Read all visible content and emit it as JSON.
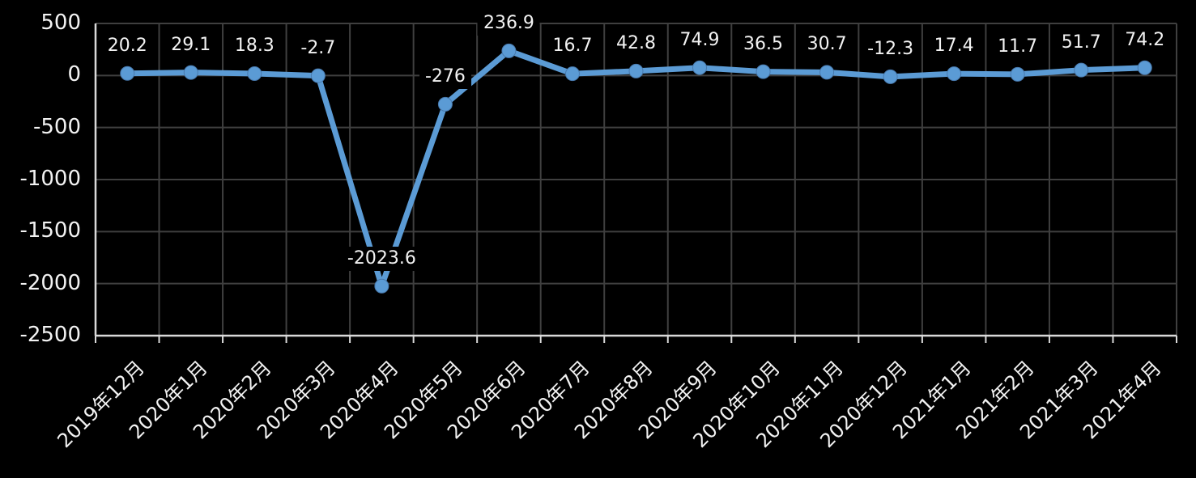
{
  "chart_data": {
    "type": "line",
    "title": "",
    "categories": [
      "2019年12月",
      "2020年1月",
      "2020年2月",
      "2020年3月",
      "2020年4月",
      "2020年5月",
      "2020年6月",
      "2020年7月",
      "2020年8月",
      "2020年9月",
      "2020年10月",
      "2020年11月",
      "2020年12月",
      "2021年1月",
      "2021年2月",
      "2021年3月",
      "2021年4月"
    ],
    "values": [
      20.2,
      29.1,
      18.3,
      -2.7,
      -2023.6,
      -276,
      236.9,
      16.7,
      42.8,
      74.9,
      36.5,
      30.7,
      -12.3,
      17.4,
      11.7,
      51.7,
      74.2
    ],
    "data_labels": [
      "20.2",
      "29.1",
      "18.3",
      "-2.7",
      "-2023.6",
      "-276",
      "236.9",
      "16.7",
      "42.8",
      "74.9",
      "36.5",
      "30.7",
      "-12.3",
      "17.4",
      "11.7",
      "51.7",
      "74.2"
    ],
    "xlabel": "",
    "ylabel": "",
    "ylim": [
      -2500,
      500
    ],
    "ytick_step": 500,
    "ytick_labels": [
      "500",
      "0",
      "-500",
      "-1000",
      "-1500",
      "-2000",
      "-2500"
    ],
    "x_label_rotation_deg": -45,
    "grid": true,
    "legend": "none",
    "colors": {
      "background": "#000000",
      "series_line": "#5B9BD5",
      "marker_fill": "#5B9BD5",
      "marker_edge": "#4879AD",
      "gridline": "#3F3F3F",
      "axis_line": "#D9D9D9",
      "text": "#F2F2F2",
      "data_label_background": "#000000"
    }
  }
}
